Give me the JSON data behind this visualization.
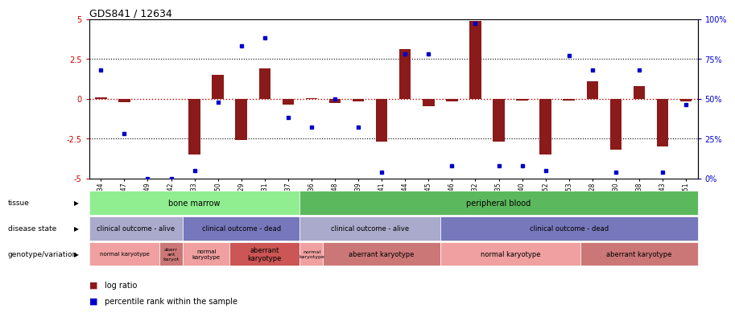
{
  "title": "GDS841 / 12634",
  "samples": [
    "GSM6234",
    "GSM6247",
    "GSM6249",
    "GSM6242",
    "GSM6233",
    "GSM6250",
    "GSM6229",
    "GSM6231",
    "GSM6237",
    "GSM6236",
    "GSM6248",
    "GSM6239",
    "GSM6241",
    "GSM6244",
    "GSM6245",
    "GSM6246",
    "GSM6232",
    "GSM6235",
    "GSM6240",
    "GSM6252",
    "GSM6253",
    "GSM6228",
    "GSM6230",
    "GSM6238",
    "GSM6243",
    "GSM6251"
  ],
  "log_ratio": [
    0.1,
    -0.2,
    0.0,
    0.0,
    -3.5,
    1.5,
    -2.6,
    1.9,
    -0.4,
    0.05,
    -0.3,
    -0.15,
    -2.7,
    3.1,
    -0.5,
    -0.15,
    4.9,
    -2.7,
    -0.1,
    -3.5,
    -0.1,
    1.1,
    -3.2,
    0.8,
    -3.0,
    -0.15
  ],
  "percentile": [
    68,
    28,
    0,
    0,
    5,
    48,
    83,
    88,
    38,
    32,
    50,
    32,
    4,
    78,
    78,
    8,
    97,
    8,
    8,
    5,
    77,
    68,
    4,
    68,
    4,
    46
  ],
  "tissue_groups": [
    {
      "label": "bone marrow",
      "start": 0,
      "end": 8,
      "color": "#90EE90"
    },
    {
      "label": "peripheral blood",
      "start": 9,
      "end": 25,
      "color": "#5CB85C"
    }
  ],
  "disease_groups": [
    {
      "label": "clinical outcome - alive",
      "start": 0,
      "end": 3,
      "color": "#AAAACC"
    },
    {
      "label": "clinical outcome - dead",
      "start": 4,
      "end": 8,
      "color": "#7777BB"
    },
    {
      "label": "clinical outcome - alive",
      "start": 9,
      "end": 14,
      "color": "#AAAACC"
    },
    {
      "label": "clinical outcome - dead",
      "start": 15,
      "end": 25,
      "color": "#7777BB"
    }
  ],
  "genotype_groups": [
    {
      "label": "normal karyotype",
      "start": 0,
      "end": 2,
      "color": "#F0A0A0",
      "fontsize": 5
    },
    {
      "label": "aberr\nant\nkaryot",
      "start": 3,
      "end": 3,
      "color": "#CC7777",
      "fontsize": 4.5
    },
    {
      "label": "normal\nkaryotype",
      "start": 4,
      "end": 5,
      "color": "#F0A0A0",
      "fontsize": 5
    },
    {
      "label": "aberrant\nkaryotype",
      "start": 6,
      "end": 8,
      "color": "#CC5555",
      "fontsize": 6
    },
    {
      "label": "normal\nkaryotype",
      "start": 9,
      "end": 9,
      "color": "#F0A0A0",
      "fontsize": 4.5
    },
    {
      "label": "aberrant karyotype",
      "start": 10,
      "end": 14,
      "color": "#CC7777",
      "fontsize": 6
    },
    {
      "label": "normal karyotype",
      "start": 15,
      "end": 20,
      "color": "#F0A0A0",
      "fontsize": 6
    },
    {
      "label": "aberrant karyotype",
      "start": 21,
      "end": 25,
      "color": "#CC7777",
      "fontsize": 6
    }
  ],
  "ylim": [
    -5,
    5
  ],
  "yticks_left": [
    -5,
    -2.5,
    0,
    2.5,
    5
  ],
  "yticks_right": [
    0,
    25,
    50,
    75,
    100
  ],
  "bar_color": "#8B1A1A",
  "dot_color": "#0000CC",
  "hline_color": "#CC0000",
  "bg_color": "#FFFFFF"
}
